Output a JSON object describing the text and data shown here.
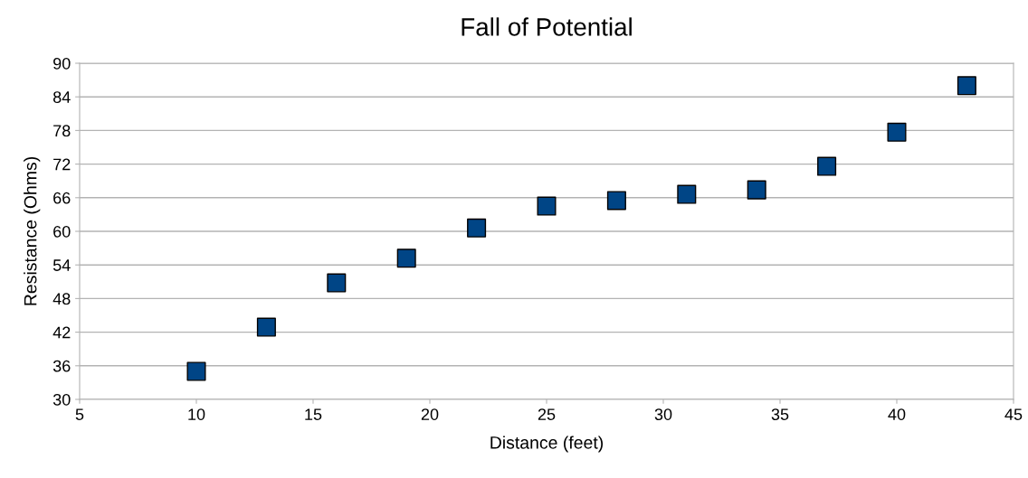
{
  "chart_data": {
    "type": "scatter",
    "title": "Fall of Potential",
    "xlabel": "Distance (feet)",
    "ylabel": "Resistance (Ohms)",
    "x": [
      10,
      13,
      16,
      19,
      22,
      25,
      28,
      31,
      34,
      37,
      40,
      43
    ],
    "series": [
      {
        "color": "#004586",
        "values": [
          35.0,
          42.9,
          50.8,
          55.2,
          60.6,
          64.5,
          65.5,
          66.6,
          67.4,
          71.6,
          77.7,
          86.0
        ]
      }
    ],
    "xlim": [
      5,
      45
    ],
    "xticks": [
      5,
      10,
      15,
      20,
      25,
      30,
      35,
      40,
      45
    ],
    "ylim": [
      30,
      90
    ],
    "yticks": [
      30,
      36,
      42,
      48,
      54,
      60,
      66,
      72,
      78,
      84,
      90
    ],
    "grid": "y",
    "marker": "square",
    "legend": false
  }
}
